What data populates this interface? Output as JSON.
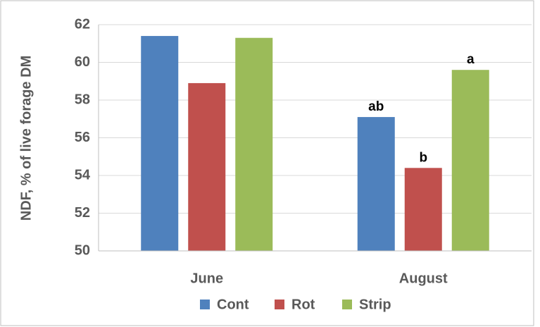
{
  "chart_data": {
    "type": "bar",
    "y_label": "NDF, % of live forage DM",
    "categories": [
      "June",
      "August"
    ],
    "series": [
      {
        "name": "Cont",
        "color": "#4f81bd",
        "values": [
          61.4,
          57.1
        ],
        "labels": [
          null,
          "ab"
        ]
      },
      {
        "name": "Rot",
        "color": "#c0504d",
        "values": [
          58.9,
          54.4
        ],
        "labels": [
          null,
          "b"
        ]
      },
      {
        "name": "Strip",
        "color": "#9bbb59",
        "values": [
          61.3,
          59.6
        ],
        "labels": [
          null,
          "a"
        ]
      }
    ],
    "ylim": [
      50,
      62
    ],
    "yticks": [
      50,
      52,
      54,
      56,
      58,
      60,
      62
    ],
    "grid": true,
    "legend": "bottom"
  }
}
